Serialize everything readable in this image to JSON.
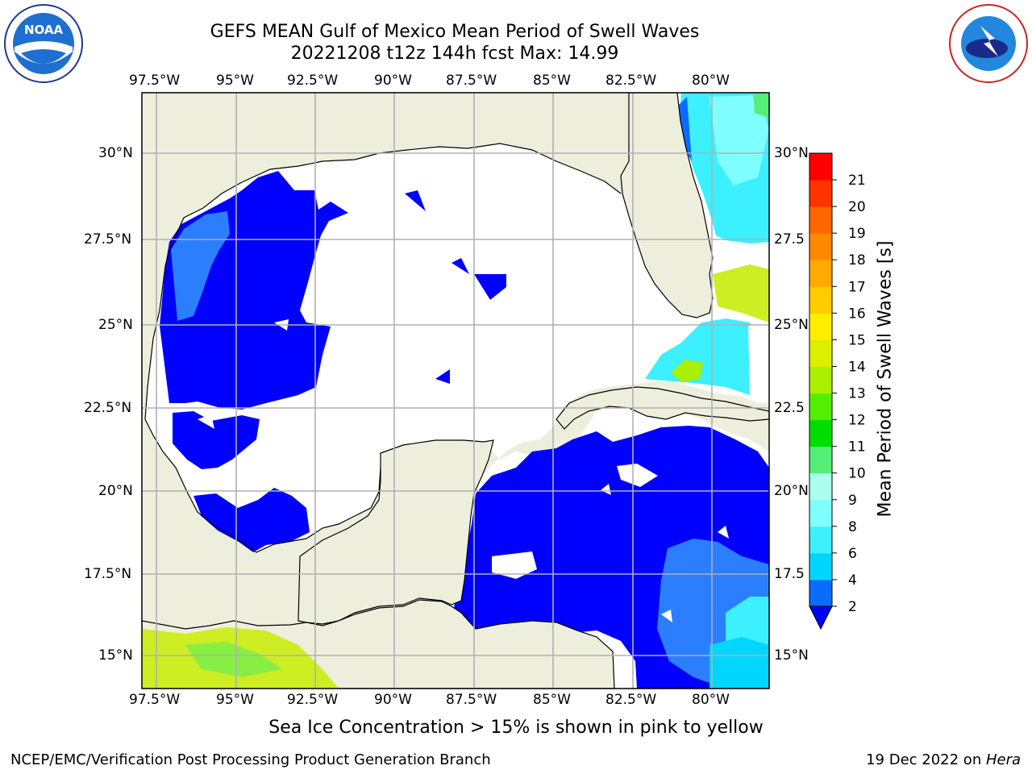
{
  "header": {
    "title_line1": "GEFS MEAN Gulf of Mexico Mean Period of Swell Waves",
    "title_line2": "20221208 t12z 144h fcst   Max: 14.99"
  },
  "logos": {
    "left": "NOAA",
    "right": "NATIONAL WEATHER SERVICE"
  },
  "map": {
    "lon_labels": [
      "97.5°W",
      "95°W",
      "92.5°W",
      "90°W",
      "87.5°W",
      "85°W",
      "82.5°W",
      "80°W"
    ],
    "lat_labels_left": [
      "30°N",
      "27.5°N",
      "25°N",
      "22.5°N",
      "20°N",
      "17.5°N",
      "15°N"
    ],
    "lat_labels_right": [
      "30°N",
      "27.5",
      "25°N",
      "22.5",
      "20°N",
      "17.5",
      "15°N"
    ],
    "land_color": "#eeeedd",
    "ocean_color": "#ffffff",
    "grid_color": "#b0b0b0"
  },
  "colorbar": {
    "title": "Mean Period of Swell Waves [s]",
    "ticks": [
      "2",
      "4",
      "6",
      "8",
      "9",
      "10",
      "11",
      "12",
      "13",
      "14",
      "15",
      "16",
      "17",
      "18",
      "19",
      "20",
      "21"
    ],
    "colors": [
      "#0a6cff",
      "#00d6ff",
      "#3cf0ff",
      "#80ffff",
      "#aaffee",
      "#55ee77",
      "#00dd00",
      "#55ee00",
      "#aaee00",
      "#ddee00",
      "#ffee00",
      "#ffcc00",
      "#ffaa00",
      "#ff8800",
      "#ff6600",
      "#ff3300",
      "#ff0000"
    ],
    "extend_color": "#0000ff"
  },
  "caption": "Sea Ice Concentration > 15% is shown in pink to yellow",
  "footer": {
    "left": "NCEP/EMC/Verification Post Processing Product Generation Branch",
    "right_prefix": "19 Dec 2022 on ",
    "right_host": "Hera"
  }
}
